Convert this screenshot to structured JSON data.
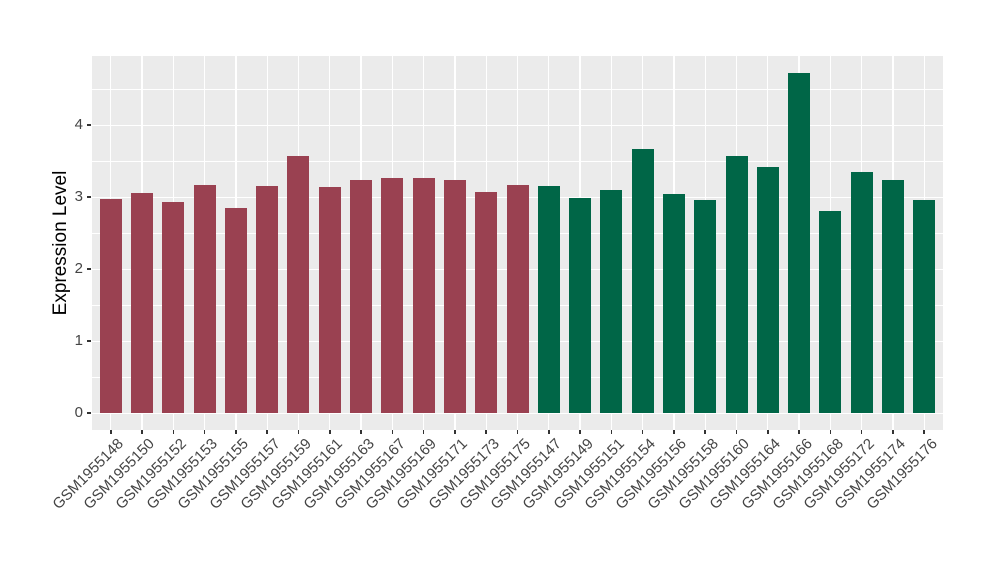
{
  "chart_data": {
    "type": "bar",
    "title": "",
    "xlabel": "",
    "ylabel": "Expression Level",
    "ylim": [
      -0.24,
      4.96
    ],
    "yticks": [
      "0",
      "1",
      "2",
      "3",
      "4"
    ],
    "ytick_values": [
      0,
      1,
      2,
      3,
      4
    ],
    "minor_gridline_values": [
      0.5,
      1.5,
      2.5,
      3.5,
      4.5
    ],
    "grid": true,
    "legend_position": "none",
    "panel_background": "#EBEBEB",
    "grid_color": "#FFFFFF",
    "axis_text_color": "#444444",
    "tick_mark_color": "#333333",
    "series": [
      {
        "name": "maroon-group",
        "color": "#9A4151",
        "categories": [
          "GSM1955148",
          "GSM1955150",
          "GSM1955152",
          "GSM1955153",
          "GSM1955155",
          "GSM1955157",
          "GSM1955159",
          "GSM1955161",
          "GSM1955163",
          "GSM1955167",
          "GSM1955169",
          "GSM1955171",
          "GSM1955173",
          "GSM1955175"
        ],
        "values": [
          2.97,
          3.05,
          2.93,
          3.16,
          2.85,
          3.15,
          3.57,
          3.14,
          3.24,
          3.27,
          3.26,
          3.24,
          3.07,
          3.16
        ]
      },
      {
        "name": "green-group",
        "color": "#006647",
        "categories": [
          "GSM1955147",
          "GSM1955149",
          "GSM1955151",
          "GSM1955154",
          "GSM1955156",
          "GSM1955158",
          "GSM1955160",
          "GSM1955164",
          "GSM1955166",
          "GSM1955168",
          "GSM1955172",
          "GSM1955174",
          "GSM1955176"
        ],
        "values": [
          3.15,
          2.99,
          3.1,
          3.67,
          3.04,
          2.96,
          3.57,
          3.42,
          4.72,
          2.8,
          3.35,
          3.24,
          2.96
        ]
      }
    ]
  }
}
